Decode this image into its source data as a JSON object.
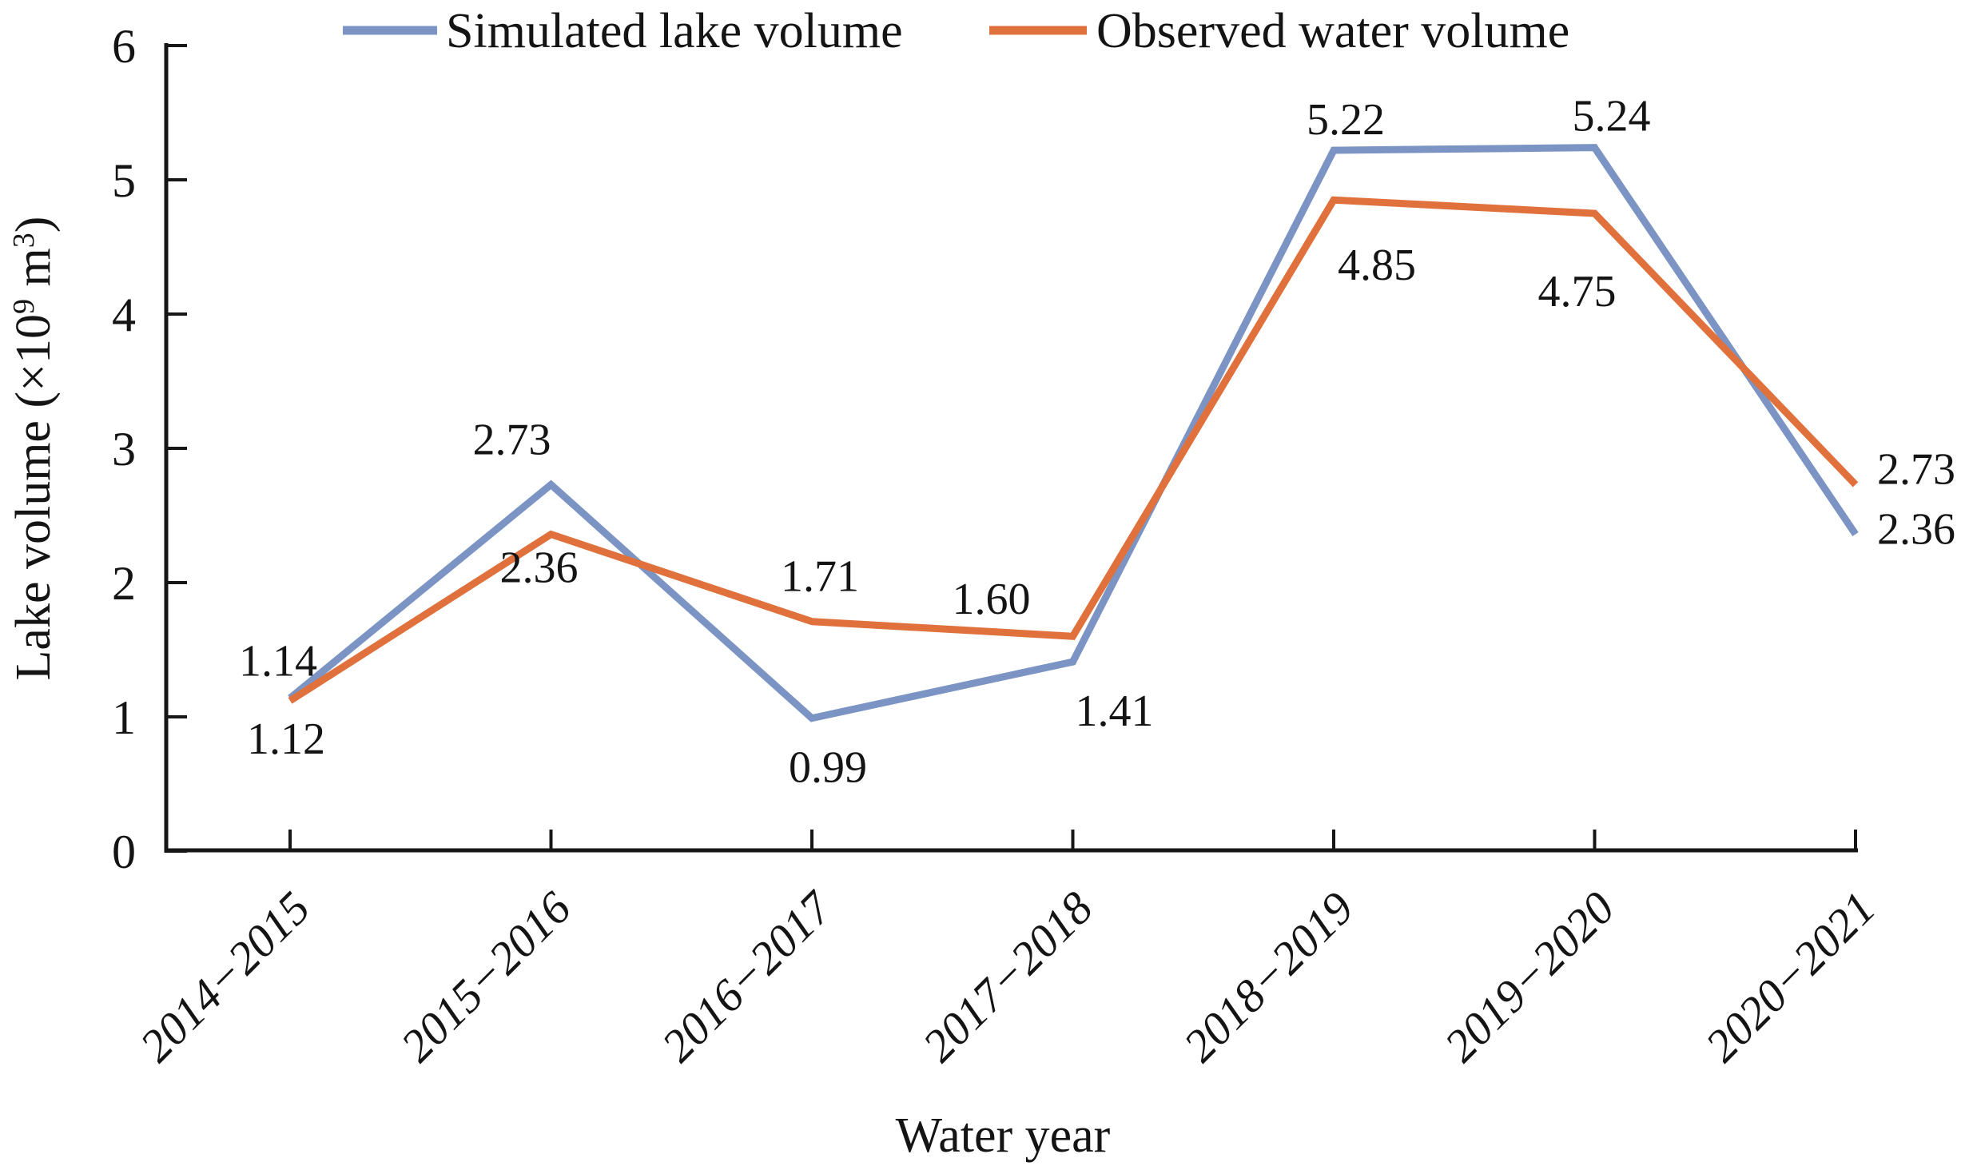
{
  "figure": {
    "background": "#ffffff"
  },
  "chart_data": {
    "type": "line",
    "title": "",
    "xlabel": "Water year",
    "ylabel": "Lake volume (×10⁹ m³)",
    "ylabel_parts": [
      {
        "t": "Lake volume (×10",
        "sup": false
      },
      {
        "t": "9",
        "sup": true
      },
      {
        "t": " m",
        "sup": false
      },
      {
        "t": "3",
        "sup": true
      },
      {
        "t": ")",
        "sup": false
      }
    ],
    "categories": [
      "2014−2015",
      "2015−2016",
      "2016−2017",
      "2017−2018",
      "2018−2019",
      "2019−2020",
      "2020−2021"
    ],
    "series": [
      {
        "name": "Simulated lake volume",
        "color": "#7B94C3",
        "values": [
          1.14,
          2.73,
          0.99,
          1.41,
          5.22,
          5.24,
          2.36
        ],
        "labels": [
          "1.14",
          "2.73",
          "0.99",
          "1.41",
          "5.22",
          "5.24",
          "2.36"
        ],
        "label_offsets": [
          [
            -15,
            -48
          ],
          [
            -49,
            -58
          ],
          [
            20,
            60
          ],
          [
            52,
            60
          ],
          [
            15,
            -40
          ],
          [
            21,
            -41
          ],
          [
            76,
            -8
          ]
        ]
      },
      {
        "name": "Observed water volume",
        "color": "#E0713C",
        "values": [
          1.12,
          2.36,
          1.71,
          1.6,
          4.85,
          4.75,
          2.73
        ],
        "labels": [
          "1.12",
          "2.36",
          "1.71",
          "1.60",
          "4.85",
          "4.75",
          "2.73"
        ],
        "label_offsets": [
          [
            -5,
            46
          ],
          [
            -15,
            40
          ],
          [
            10,
            -58
          ],
          [
            -102,
            -48
          ],
          [
            54,
            80
          ],
          [
            -22,
            96
          ],
          [
            76,
            -21
          ]
        ]
      }
    ],
    "ylim": [
      0,
      6
    ],
    "yticks": [
      "0",
      "1",
      "2",
      "3",
      "4",
      "5",
      "6"
    ],
    "grid": false,
    "legend_position": "top",
    "axis_color": "#161616",
    "text_color": "#141414"
  }
}
